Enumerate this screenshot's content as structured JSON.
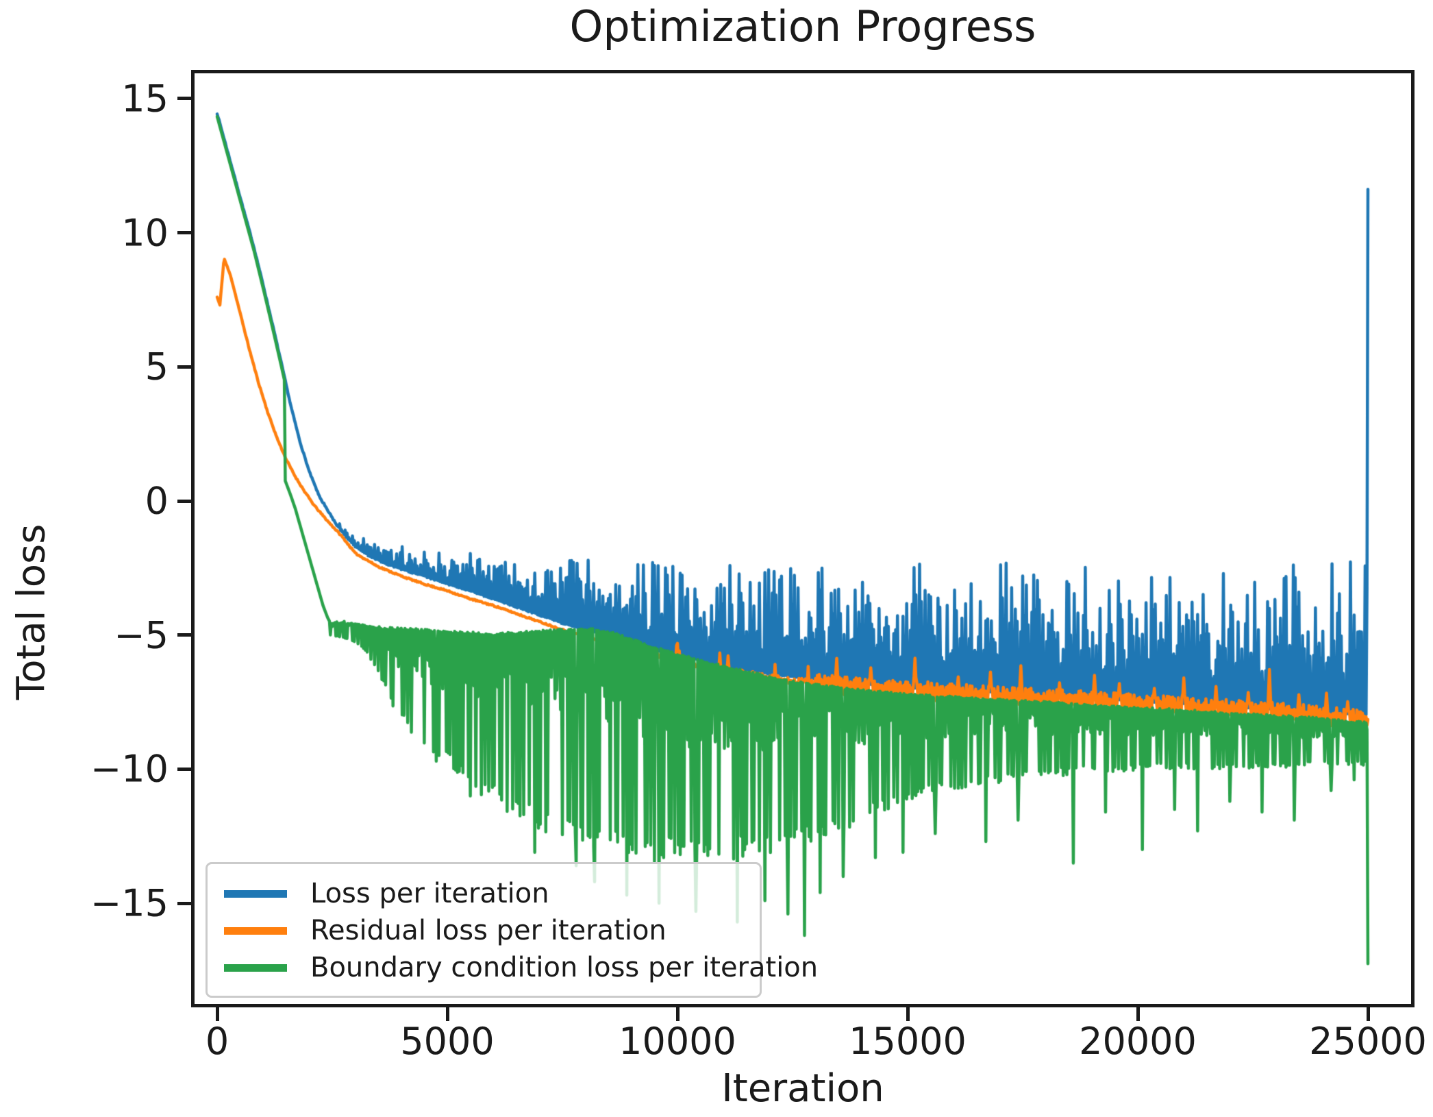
{
  "title": "Optimization Progress",
  "axes": {
    "xlabel": "Iteration",
    "ylabel": "Total loss",
    "x_ticks": [
      {
        "value": 0,
        "label": "0"
      },
      {
        "value": 5000,
        "label": "5000"
      },
      {
        "value": 10000,
        "label": "10000"
      },
      {
        "value": 15000,
        "label": "15000"
      },
      {
        "value": 20000,
        "label": "20000"
      },
      {
        "value": 25000,
        "label": "25000"
      }
    ],
    "y_ticks": [
      {
        "value": 15,
        "label": "15"
      },
      {
        "value": 10,
        "label": "10"
      },
      {
        "value": 5,
        "label": "5"
      },
      {
        "value": 0,
        "label": "0"
      },
      {
        "value": -5,
        "label": "−5"
      },
      {
        "value": -10,
        "label": "−10"
      },
      {
        "value": -15,
        "label": "−15"
      }
    ]
  },
  "legend": {
    "position": "lower left",
    "items": [
      {
        "label": "Loss per iteration",
        "color": "#1f77b4"
      },
      {
        "label": "Residual loss per iteration",
        "color": "#ff7f0e"
      },
      {
        "label": "Boundary condition loss per iteration",
        "color": "#2aa24a"
      }
    ]
  },
  "chart_data": {
    "type": "line",
    "title": "Optimization Progress",
    "xlabel": "Iteration",
    "ylabel": "Total loss",
    "xlim": [
      -530,
      26000
    ],
    "ylim": [
      -18.8,
      16.0
    ],
    "grid": false,
    "sample_step_iterations": 20,
    "series": [
      {
        "name": "Loss per iteration",
        "color": "#1f77b4",
        "seed": 7,
        "trend_keypoints": [
          [
            0,
            14.45
          ],
          [
            200,
            13.2
          ],
          [
            400,
            11.95
          ],
          [
            600,
            10.7
          ],
          [
            800,
            9.45
          ],
          [
            1000,
            8.05
          ],
          [
            1200,
            6.6
          ],
          [
            1400,
            5.1
          ],
          [
            1600,
            3.55
          ],
          [
            1800,
            2.2
          ],
          [
            2000,
            1.1
          ],
          [
            2200,
            0.25
          ],
          [
            2400,
            -0.4
          ],
          [
            2600,
            -0.95
          ],
          [
            2800,
            -1.4
          ],
          [
            3000,
            -1.75
          ],
          [
            3300,
            -2.1
          ],
          [
            3600,
            -2.35
          ],
          [
            4000,
            -2.6
          ],
          [
            4500,
            -2.85
          ],
          [
            5000,
            -3.15
          ],
          [
            5500,
            -3.4
          ],
          [
            6000,
            -3.7
          ],
          [
            6500,
            -4.0
          ],
          [
            7000,
            -4.3
          ],
          [
            7500,
            -4.6
          ],
          [
            8000,
            -4.85
          ],
          [
            8500,
            -5.1
          ],
          [
            9000,
            -5.35
          ],
          [
            9500,
            -5.6
          ],
          [
            10000,
            -5.8
          ],
          [
            10500,
            -6.0
          ],
          [
            11000,
            -6.2
          ],
          [
            11500,
            -6.35
          ],
          [
            12000,
            -6.5
          ],
          [
            13000,
            -6.7
          ],
          [
            14000,
            -6.85
          ],
          [
            15000,
            -7.0
          ],
          [
            16000,
            -7.1
          ],
          [
            17000,
            -7.2
          ],
          [
            18000,
            -7.3
          ],
          [
            19000,
            -7.4
          ],
          [
            20000,
            -7.5
          ],
          [
            21000,
            -7.6
          ],
          [
            22000,
            -7.7
          ],
          [
            23000,
            -7.8
          ],
          [
            24000,
            -7.9
          ],
          [
            25000,
            -8.0
          ]
        ],
        "noise_amplitude_keypoints": [
          [
            2300,
            0
          ],
          [
            2600,
            0.25
          ],
          [
            3000,
            0.5
          ],
          [
            3500,
            0.7
          ],
          [
            4000,
            0.9
          ],
          [
            4500,
            1.1
          ],
          [
            5000,
            1.3
          ],
          [
            6000,
            1.75
          ],
          [
            7000,
            2.2
          ],
          [
            8000,
            2.65
          ],
          [
            9000,
            3.1
          ],
          [
            10000,
            3.5
          ],
          [
            11000,
            3.85
          ],
          [
            12000,
            4.15
          ],
          [
            13000,
            4.4
          ],
          [
            14000,
            4.6
          ],
          [
            15000,
            4.75
          ],
          [
            16000,
            4.85
          ],
          [
            17000,
            4.95
          ],
          [
            18000,
            5.05
          ],
          [
            19000,
            5.15
          ],
          [
            20000,
            5.25
          ],
          [
            21000,
            5.35
          ],
          [
            22000,
            5.45
          ],
          [
            23000,
            5.55
          ],
          [
            24000,
            5.65
          ],
          [
            25000,
            5.75
          ]
        ],
        "final_point": [
          25000,
          11.62
        ]
      },
      {
        "name": "Residual loss per iteration",
        "color": "#ff7f0e",
        "seed": 11,
        "trend_keypoints": [
          [
            0,
            7.6
          ],
          [
            60,
            7.3
          ],
          [
            150,
            9.05
          ],
          [
            300,
            8.35
          ],
          [
            500,
            7.0
          ],
          [
            700,
            5.65
          ],
          [
            900,
            4.4
          ],
          [
            1100,
            3.3
          ],
          [
            1300,
            2.35
          ],
          [
            1500,
            1.55
          ],
          [
            1700,
            0.9
          ],
          [
            1900,
            0.35
          ],
          [
            2100,
            -0.15
          ],
          [
            2400,
            -0.75
          ],
          [
            2700,
            -1.3
          ],
          [
            3000,
            -1.95
          ],
          [
            3500,
            -2.45
          ],
          [
            4000,
            -2.8
          ],
          [
            4500,
            -3.1
          ],
          [
            5000,
            -3.35
          ],
          [
            5500,
            -3.65
          ],
          [
            6000,
            -3.9
          ],
          [
            6500,
            -4.2
          ],
          [
            7000,
            -4.5
          ],
          [
            7500,
            -4.8
          ],
          [
            8000,
            -5.05
          ],
          [
            8500,
            -5.3
          ],
          [
            9000,
            -5.55
          ],
          [
            9500,
            -5.75
          ],
          [
            10000,
            -5.95
          ],
          [
            10500,
            -6.15
          ],
          [
            11000,
            -6.3
          ],
          [
            11500,
            -6.45
          ],
          [
            12000,
            -6.6
          ],
          [
            12500,
            -6.7
          ],
          [
            13000,
            -6.8
          ],
          [
            14000,
            -6.95
          ],
          [
            15000,
            -7.05
          ],
          [
            16000,
            -7.15
          ],
          [
            17000,
            -7.25
          ],
          [
            18000,
            -7.35
          ],
          [
            19000,
            -7.45
          ],
          [
            20000,
            -7.55
          ],
          [
            21000,
            -7.65
          ],
          [
            22000,
            -7.75
          ],
          [
            23000,
            -7.85
          ],
          [
            24000,
            -8.0
          ],
          [
            25000,
            -8.15
          ]
        ],
        "spike_points": [
          [
            13450,
            1.0
          ],
          [
            14200,
            0.75
          ],
          [
            15150,
            1.2
          ],
          [
            16100,
            0.6
          ],
          [
            16800,
            0.85
          ],
          [
            17450,
            1.15
          ],
          [
            18300,
            0.6
          ],
          [
            19050,
            0.95
          ],
          [
            19600,
            0.7
          ],
          [
            20350,
            0.6
          ],
          [
            21000,
            1.05
          ],
          [
            21700,
            0.8
          ],
          [
            22400,
            0.65
          ],
          [
            22850,
            1.55
          ],
          [
            23500,
            0.7
          ],
          [
            24100,
            0.85
          ],
          [
            24550,
            0.6
          ]
        ],
        "final_point": [
          25000,
          -8.15
        ]
      },
      {
        "name": "Boundary condition loss per iteration",
        "color": "#2aa24a",
        "seed": 3,
        "early_offset_below_blue": 0.12,
        "steep_keypoints": [
          [
            1480,
            0.75
          ],
          [
            1600,
            0.2
          ],
          [
            1700,
            -0.3
          ],
          [
            1800,
            -0.9
          ],
          [
            1900,
            -1.5
          ],
          [
            2000,
            -2.1
          ],
          [
            2100,
            -2.7
          ],
          [
            2200,
            -3.3
          ],
          [
            2300,
            -3.9
          ],
          [
            2400,
            -4.35
          ],
          [
            2460,
            -4.55
          ]
        ],
        "upper_envelope_keypoints": [
          [
            2460,
            -4.5
          ],
          [
            2700,
            -4.45
          ],
          [
            3000,
            -4.5
          ],
          [
            3500,
            -4.65
          ],
          [
            4000,
            -4.7
          ],
          [
            4500,
            -4.75
          ],
          [
            5000,
            -4.8
          ],
          [
            5500,
            -4.85
          ],
          [
            6000,
            -4.9
          ],
          [
            6500,
            -4.85
          ],
          [
            7000,
            -4.8
          ],
          [
            7500,
            -4.75
          ],
          [
            8000,
            -4.7
          ],
          [
            8500,
            -4.8
          ],
          [
            9000,
            -5.1
          ],
          [
            9500,
            -5.4
          ],
          [
            10000,
            -5.65
          ],
          [
            10500,
            -5.9
          ],
          [
            11000,
            -6.1
          ],
          [
            11500,
            -6.3
          ],
          [
            12000,
            -6.5
          ],
          [
            12500,
            -6.65
          ],
          [
            13000,
            -6.8
          ],
          [
            13500,
            -6.9
          ],
          [
            14000,
            -7.0
          ],
          [
            15000,
            -7.15
          ],
          [
            16000,
            -7.25
          ],
          [
            17000,
            -7.35
          ],
          [
            18000,
            -7.45
          ],
          [
            19000,
            -7.55
          ],
          [
            20000,
            -7.65
          ],
          [
            21000,
            -7.75
          ],
          [
            22000,
            -7.85
          ],
          [
            23000,
            -7.95
          ],
          [
            24000,
            -8.05
          ],
          [
            25000,
            -8.2
          ]
        ],
        "lower_envelope_keypoints": [
          [
            2460,
            -5.0
          ],
          [
            2800,
            -5.15
          ],
          [
            3100,
            -5.4
          ],
          [
            3400,
            -6.1
          ],
          [
            3700,
            -7.3
          ],
          [
            4000,
            -8.2
          ],
          [
            4300,
            -8.9
          ],
          [
            4600,
            -9.4
          ],
          [
            5000,
            -9.9
          ],
          [
            5400,
            -10.5
          ],
          [
            5800,
            -11.1
          ],
          [
            6200,
            -11.6
          ],
          [
            6600,
            -12.0
          ],
          [
            7000,
            -12.3
          ],
          [
            7500,
            -12.6
          ],
          [
            8000,
            -12.9
          ],
          [
            8500,
            -13.1
          ],
          [
            9000,
            -13.3
          ],
          [
            9500,
            -13.45
          ],
          [
            10000,
            -13.5
          ],
          [
            10500,
            -13.5
          ],
          [
            11000,
            -13.4
          ],
          [
            11500,
            -13.3
          ],
          [
            12000,
            -13.2
          ],
          [
            12500,
            -13.0
          ],
          [
            13000,
            -12.75
          ],
          [
            13500,
            -12.4
          ],
          [
            14000,
            -12.0
          ],
          [
            14500,
            -11.6
          ],
          [
            15000,
            -11.3
          ],
          [
            15500,
            -11.0
          ],
          [
            16000,
            -10.8
          ],
          [
            17000,
            -10.5
          ],
          [
            18000,
            -10.3
          ],
          [
            19000,
            -10.15
          ],
          [
            20000,
            -10.05
          ],
          [
            21000,
            -10.0
          ],
          [
            22000,
            -10.0
          ],
          [
            23000,
            -9.95
          ],
          [
            24000,
            -9.9
          ],
          [
            25000,
            -9.9
          ]
        ],
        "deep_spike_points": [
          [
            4750,
            -9.7
          ],
          [
            5500,
            -11.0
          ],
          [
            6900,
            -13.1
          ],
          [
            7800,
            -13.6
          ],
          [
            8200,
            -14.2
          ],
          [
            8900,
            -14.7
          ],
          [
            9600,
            -15.0
          ],
          [
            10400,
            -15.3
          ],
          [
            11300,
            -15.7
          ],
          [
            11900,
            -14.9
          ],
          [
            12400,
            -15.4
          ],
          [
            12750,
            -16.2
          ],
          [
            13100,
            -14.6
          ],
          [
            13600,
            -14.0
          ],
          [
            14300,
            -13.3
          ],
          [
            14900,
            -13.1
          ],
          [
            15600,
            -12.4
          ],
          [
            16700,
            -12.7
          ],
          [
            17400,
            -11.9
          ],
          [
            18600,
            -13.5
          ],
          [
            19300,
            -11.6
          ],
          [
            20100,
            -13.0
          ],
          [
            20800,
            -11.5
          ],
          [
            21300,
            -12.3
          ],
          [
            22000,
            -11.2
          ],
          [
            22700,
            -11.6
          ],
          [
            23400,
            -11.9
          ],
          [
            24200,
            -10.8
          ],
          [
            24700,
            -10.4
          ]
        ],
        "final_point": [
          25000,
          -17.25
        ]
      }
    ]
  }
}
